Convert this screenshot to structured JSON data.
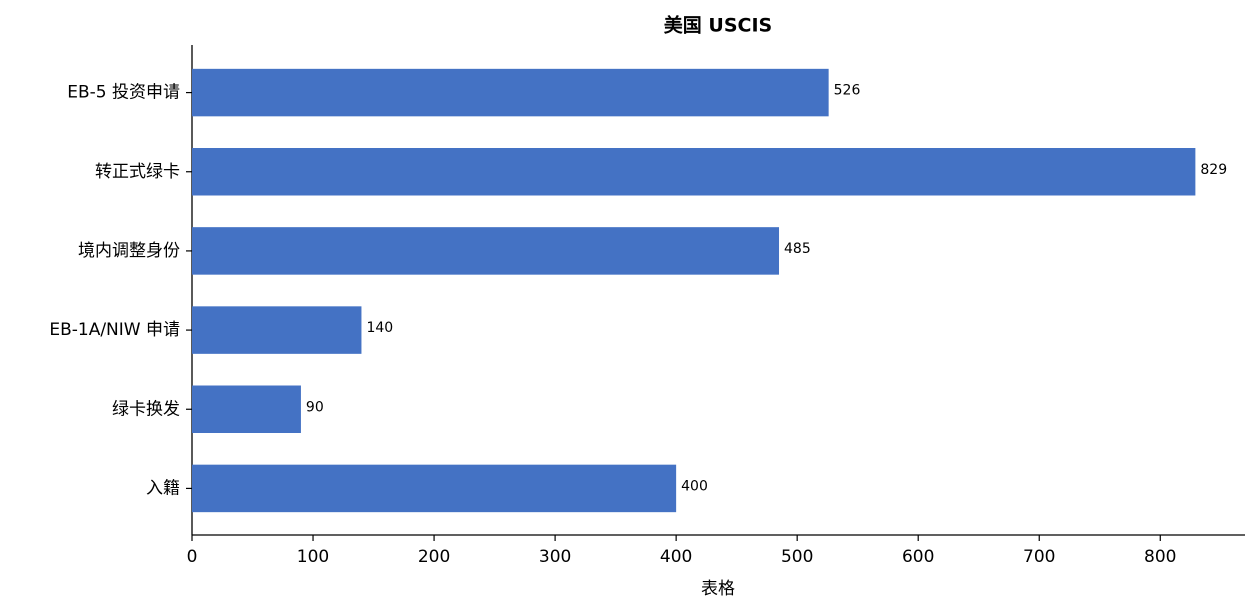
{
  "chart_data": {
    "type": "barh",
    "title": "美国 USCIS",
    "xlabel": "表格",
    "categories": [
      "EB-5 投资申请",
      "转正式绿卡",
      "境内调整身份",
      "EB-1A/NIW 申请",
      "绿卡换发",
      "入籍"
    ],
    "values": [
      526,
      829,
      485,
      140,
      90,
      400
    ],
    "color": "#4472c4",
    "xlim": [
      0,
      870
    ],
    "xticks": [
      0,
      100,
      200,
      300,
      400,
      500,
      600,
      700,
      800
    ],
    "grid": false
  }
}
